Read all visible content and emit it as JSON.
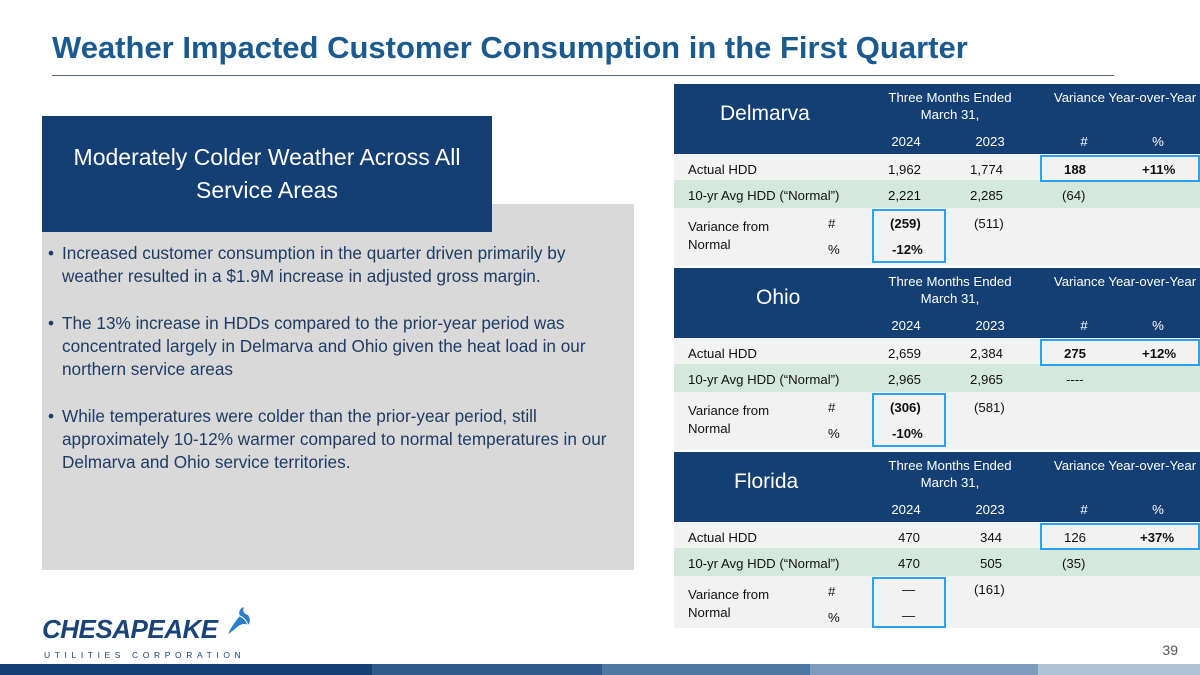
{
  "title": "Weather Impacted Customer Consumption in the First Quarter",
  "callout": "Moderately Colder Weather Across All Service Areas",
  "bullets": [
    "Increased customer consumption in the quarter driven primarily by weather resulted in a $1.9M increase in adjusted gross margin.",
    "The 13% increase in HDDs compared to the prior-year period was concentrated largely in Delmarva and Ohio given the heat load in our northern service areas",
    "While temperatures were colder than the prior-year period, still approximately 10-12% warmer compared to normal temperatures in our Delmarva and Ohio service territories."
  ],
  "bullet_char": "•",
  "table_headers": {
    "period": "Three Months Ended March 31,",
    "variance": "Variance Year-over-Year",
    "y2024": "2024",
    "y2023": "2023",
    "num": "#",
    "pct": "%",
    "actual": "Actual HDD",
    "normal": "10-yr Avg HDD (“Normal”)",
    "var_from_normal": "Variance from Normal"
  },
  "tables": {
    "delmarva": {
      "region": "Delmarva",
      "actual": {
        "y2024": "1,962",
        "y2023": "1,774",
        "num": "188",
        "pct": "+11%"
      },
      "normal": {
        "y2024": "2,221",
        "y2023": "2,285",
        "num": "(64)"
      },
      "var_num": {
        "y2024": "(259)",
        "y2023": "(511)"
      },
      "var_pct": {
        "y2024": "-12%"
      }
    },
    "ohio": {
      "region": "Ohio",
      "actual": {
        "y2024": "2,659",
        "y2023": "2,384",
        "num": "275",
        "pct": "+12%"
      },
      "normal": {
        "y2024": "2,965",
        "y2023": "2,965",
        "num": "----"
      },
      "var_num": {
        "y2024": "(306)",
        "y2023": "(581)"
      },
      "var_pct": {
        "y2024": "-10%"
      }
    },
    "florida": {
      "region": "Florida",
      "actual": {
        "y2024": "470",
        "y2023": "344",
        "num": "126",
        "pct": "+37%"
      },
      "normal": {
        "y2024": "470",
        "y2023": "505",
        "num": "(35)"
      },
      "var_num": {
        "y2024": "—",
        "y2023": "(161)"
      },
      "var_pct": {
        "y2024": "—"
      }
    }
  },
  "logo": {
    "name": "CHESAPEAKE",
    "sub": "UTILITIES CORPORATION"
  },
  "page_number": "39",
  "colors": {
    "navy": "#143f74",
    "title_blue": "#1a5a8e",
    "highlight": "#2aa2f0",
    "band_green": "#d4e8de",
    "panel_gray": "#d9d9d9"
  }
}
